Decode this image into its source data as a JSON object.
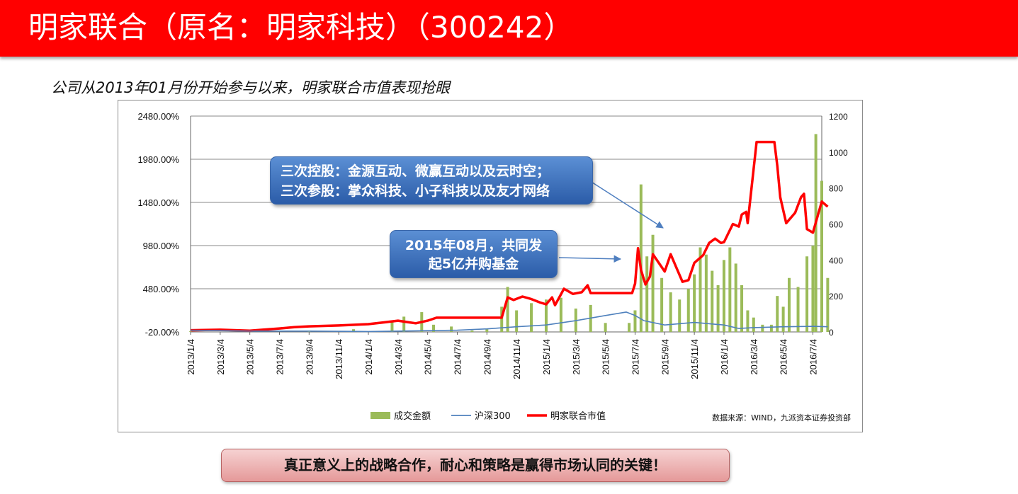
{
  "header": {
    "title": "明家联合（原名：明家科技）（300242）",
    "subtitle": "公司从2013年01月份开始参与以来，明家联合市值表现抢眼"
  },
  "callouts": {
    "first": [
      "三次控股：金源互动、微赢互动以及云时空；",
      "三次参股：掌众科技、小子科技以及友才网络"
    ],
    "second": [
      "2015年08月，共同发",
      "起5亿并购基金"
    ]
  },
  "banner": "真正意义上的战略合作，耐心和策略是赢得市场认同的关键！",
  "source_note": "数据来源：WIND，九派资本证券投资部",
  "colors": {
    "title_bar": "#ff0000",
    "callout": "#3d6fb8",
    "banner": "#eeb6b6"
  },
  "chart_data": {
    "type": "line",
    "title": "",
    "left_axis": {
      "ticks": [
        "2480.00%",
        "1980.00%",
        "1480.00%",
        "980.00%",
        "480.00%",
        "-20.00%"
      ],
      "ylim": [
        -20,
        2480
      ]
    },
    "right_axis": {
      "ticks": [
        "1200",
        "1000",
        "800",
        "600",
        "400",
        "200",
        "0"
      ],
      "ylim": [
        0,
        1200
      ]
    },
    "x_tick_labels": [
      "2013/1/4",
      "2013/3/4",
      "2013/5/4",
      "2013/7/4",
      "2013/9/4",
      "2013/11/4",
      "2014/1/4",
      "2014/3/4",
      "2014/5/4",
      "2014/7/4",
      "2014/9/4",
      "2014/11/4",
      "2015/1/4",
      "2015/3/4",
      "2015/5/4",
      "2015/7/4",
      "2015/9/4",
      "2015/11/4",
      "2016/1/4",
      "2016/3/4",
      "2016/5/4",
      "2016/7/4"
    ],
    "x_range_months": [
      0,
      21.3
    ],
    "grid": true,
    "legend_position": "bottom",
    "legend": [
      "成交金额",
      "沪深300",
      "明家联合市值"
    ],
    "series": [
      {
        "name": "明家联合市值",
        "axis": "left",
        "color": "#ff0000",
        "points": [
          [
            0,
            0
          ],
          [
            1,
            5
          ],
          [
            2,
            -5
          ],
          [
            3,
            20
          ],
          [
            3.5,
            35
          ],
          [
            4,
            45
          ],
          [
            5,
            55
          ],
          [
            6,
            70
          ],
          [
            6.5,
            90
          ],
          [
            7,
            110
          ],
          [
            7.3,
            95
          ],
          [
            7.6,
            80
          ],
          [
            8,
            110
          ],
          [
            8.3,
            145
          ],
          [
            9,
            145
          ],
          [
            10,
            145
          ],
          [
            10.5,
            145
          ],
          [
            10.7,
            380
          ],
          [
            10.9,
            350
          ],
          [
            11.2,
            390
          ],
          [
            11.5,
            360
          ],
          [
            11.8,
            320
          ],
          [
            12,
            300
          ],
          [
            12.2,
            380
          ],
          [
            12.3,
            290
          ],
          [
            12.6,
            480
          ],
          [
            12.9,
            420
          ],
          [
            13.2,
            440
          ],
          [
            13.4,
            520
          ],
          [
            13.5,
            430
          ],
          [
            14,
            430
          ],
          [
            14.9,
            430
          ],
          [
            15,
            540
          ],
          [
            15.1,
            950
          ],
          [
            15.2,
            700
          ],
          [
            15.35,
            530
          ],
          [
            15.5,
            620
          ],
          [
            15.6,
            880
          ],
          [
            15.8,
            780
          ],
          [
            16,
            680
          ],
          [
            16.2,
            880
          ],
          [
            16.4,
            720
          ],
          [
            16.6,
            560
          ],
          [
            16.8,
            580
          ],
          [
            17,
            780
          ],
          [
            17.3,
            870
          ],
          [
            17.5,
            1010
          ],
          [
            17.7,
            1060
          ],
          [
            17.9,
            1010
          ],
          [
            18,
            1020
          ],
          [
            18.3,
            1230
          ],
          [
            18.5,
            1200
          ],
          [
            18.6,
            1340
          ],
          [
            18.75,
            1370
          ],
          [
            18.8,
            1240
          ],
          [
            19.1,
            2180
          ],
          [
            19.5,
            2180
          ],
          [
            19.7,
            2180
          ],
          [
            19.8,
            1900
          ],
          [
            19.9,
            1540
          ],
          [
            20.1,
            1240
          ],
          [
            20.4,
            1360
          ],
          [
            20.6,
            1540
          ],
          [
            20.7,
            1580
          ],
          [
            20.8,
            1170
          ],
          [
            21.0,
            1130
          ],
          [
            21.3,
            1490
          ],
          [
            21.5,
            1430
          ]
        ]
      },
      {
        "name": "沪深300",
        "axis": "left",
        "color": "#4f81bd",
        "points": [
          [
            0,
            0
          ],
          [
            2,
            -10
          ],
          [
            4,
            -10
          ],
          [
            6,
            -15
          ],
          [
            8,
            -5
          ],
          [
            9,
            0
          ],
          [
            10,
            15
          ],
          [
            11,
            40
          ],
          [
            12,
            60
          ],
          [
            13,
            110
          ],
          [
            14,
            170
          ],
          [
            14.7,
            210
          ],
          [
            15,
            170
          ],
          [
            15.3,
            110
          ],
          [
            16,
            60
          ],
          [
            17,
            90
          ],
          [
            18,
            60
          ],
          [
            18.5,
            20
          ],
          [
            19,
            30
          ],
          [
            20,
            40
          ],
          [
            21,
            45
          ],
          [
            21.5,
            40
          ]
        ]
      },
      {
        "name": "成交金额",
        "axis": "right",
        "color": "#9bbb59",
        "bars": [
          [
            0,
            3
          ],
          [
            2,
            5
          ],
          [
            4,
            8
          ],
          [
            5.5,
            15
          ],
          [
            6.8,
            60
          ],
          [
            7.2,
            85
          ],
          [
            7.8,
            110
          ],
          [
            8.2,
            40
          ],
          [
            8.8,
            30
          ],
          [
            9.5,
            8
          ],
          [
            10,
            15
          ],
          [
            10.5,
            140
          ],
          [
            10.7,
            250
          ],
          [
            11,
            120
          ],
          [
            11.5,
            160
          ],
          [
            12,
            180
          ],
          [
            12.5,
            190
          ],
          [
            13,
            130
          ],
          [
            13.5,
            150
          ],
          [
            14,
            50
          ],
          [
            14.8,
            50
          ],
          [
            15,
            120
          ],
          [
            15.2,
            820
          ],
          [
            15.4,
            420
          ],
          [
            15.6,
            540
          ],
          [
            15.9,
            300
          ],
          [
            16.2,
            220
          ],
          [
            16.5,
            180
          ],
          [
            16.8,
            240
          ],
          [
            17,
            320
          ],
          [
            17.2,
            470
          ],
          [
            17.4,
            430
          ],
          [
            17.6,
            340
          ],
          [
            17.8,
            260
          ],
          [
            18,
            400
          ],
          [
            18.2,
            470
          ],
          [
            18.4,
            380
          ],
          [
            18.6,
            260
          ],
          [
            18.8,
            120
          ],
          [
            19,
            80
          ],
          [
            19.3,
            40
          ],
          [
            19.6,
            40
          ],
          [
            19.8,
            200
          ],
          [
            20,
            140
          ],
          [
            20.2,
            300
          ],
          [
            20.5,
            250
          ],
          [
            20.8,
            420
          ],
          [
            21,
            480
          ],
          [
            21.1,
            1100
          ],
          [
            21.3,
            840
          ],
          [
            21.5,
            300
          ]
        ]
      }
    ]
  }
}
